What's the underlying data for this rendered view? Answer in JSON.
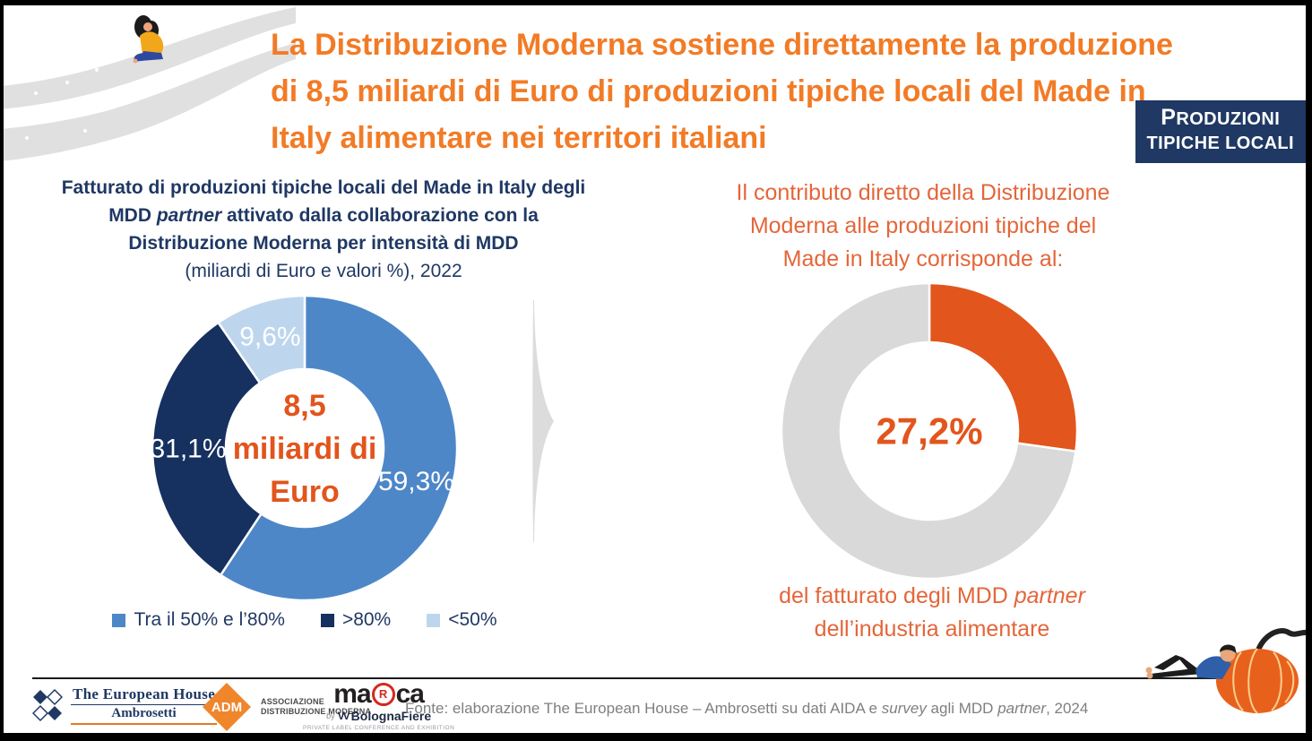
{
  "colors": {
    "title_orange": "#F27B26",
    "body_orange": "#E4663A",
    "deep_orange": "#E2551C",
    "navy": "#1F3864",
    "slice_blue": "#4E87C8",
    "slice_dark_navy": "#16305F",
    "slice_light_blue": "#BDD6EE",
    "slice_gray": "#D9D9D9",
    "source_gray": "#7F7F7F"
  },
  "title": {
    "lines": [
      "La Distribuzione Moderna sostiene direttamente la produzione",
      "di 8,5 miliardi di Euro di produzioni tipiche locali del Made in",
      "Italy alimentare nei territori italiani"
    ]
  },
  "badge": {
    "line1": "PRODUZIONI",
    "line2": "TIPICHE LOCALI"
  },
  "left_panel": {
    "heading": {
      "line1": "Fatturato di produzioni tipiche locali del Made in Italy degli",
      "line2_pre": "MDD ",
      "line2_italic": "partner",
      "line2_post": " attivato dalla collaborazione con la",
      "line3": "Distribuzione Moderna per intensità di MDD",
      "line4": "(miliardi di Euro e valori %), 2022"
    }
  },
  "right_panel": {
    "intro_lines": [
      "Il contributo diretto della Distribuzione",
      "Moderna alle produzioni tipiche del",
      "Made in Italy corrisponde al:"
    ],
    "caption": {
      "line1_pre": "del fatturato degli MDD ",
      "line1_italic": "partner",
      "line2": "dell’industria alimentare"
    }
  },
  "chart_data": [
    {
      "type": "pie",
      "subtype": "donut",
      "title": "Fatturato di produzioni tipiche locali del Made in Italy degli MDD partner attivato dalla collaborazione con la Distribuzione Moderna per intensità di MDD (miliardi di Euro e valori %), 2022",
      "categories": [
        "Tra il 50% e l’80%",
        ">80%",
        "<50%"
      ],
      "values": [
        59.3,
        31.1,
        9.6
      ],
      "value_labels": [
        "59,3%",
        "31,1%",
        "9,6%"
      ],
      "colors": [
        "#4E87C8",
        "#16305F",
        "#BDD6EE"
      ],
      "center_lines": [
        "8,5",
        "miliardi di",
        "Euro"
      ],
      "center_value": "8,5 miliardi di Euro",
      "legend_position": "bottom",
      "start_angle_deg": 0,
      "direction": "clockwise"
    },
    {
      "type": "pie",
      "subtype": "donut",
      "values": [
        27.2,
        72.8
      ],
      "value_labels": [
        "",
        ""
      ],
      "colors": [
        "#E2551C",
        "#D9D9D9"
      ],
      "center_lines": [
        "27,2%"
      ],
      "center_value": "27,2%",
      "legend_position": "none",
      "start_angle_deg": 0,
      "direction": "clockwise"
    }
  ],
  "footer": {
    "source": {
      "p1": "Fonte: elaborazione The European House – Ambrosetti su dati AIDA e ",
      "p2": "survey",
      "p3": " agli MDD ",
      "p4": "partner",
      "p5": ", 2024"
    },
    "logos": {
      "ambrosetti": {
        "line1": "The European House",
        "line2": "Ambrosetti"
      },
      "adm": {
        "abbr": "ADM",
        "line1": "ASSOCIAZIONE",
        "line2": "DISTRIBUZIONE MODERNA"
      },
      "marca": {
        "pre": "ma",
        "r": "R",
        "post": "ca",
        "by": "by",
        "check": "VV",
        "brand": "BolognaFiere",
        "tagline": "PRIVATE LABEL CONFERENCE AND EXHIBITION"
      }
    }
  }
}
